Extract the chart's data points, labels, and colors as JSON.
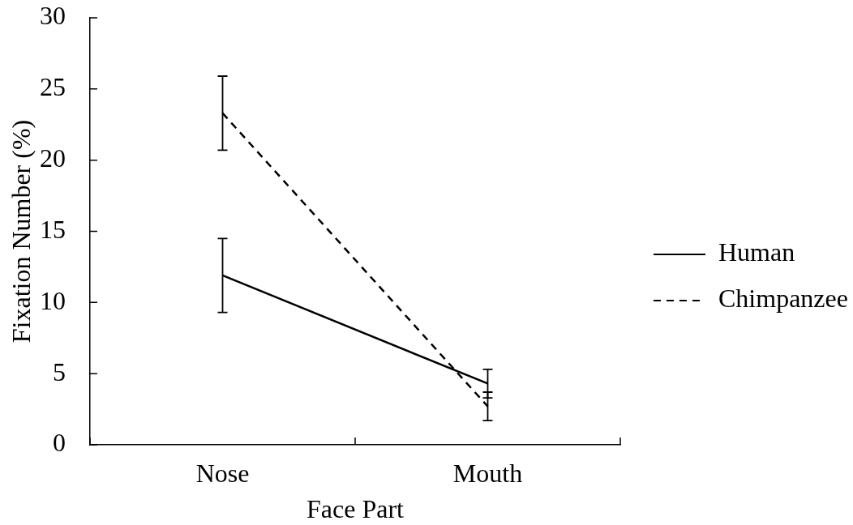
{
  "chart_data": {
    "type": "line",
    "xlabel": "Face Part",
    "ylabel": "Fixation Number (%)",
    "categories": [
      "Nose",
      "Mouth"
    ],
    "series": [
      {
        "name": "Human",
        "color": "#000000",
        "values": [
          11.9,
          4.3
        ],
        "errors": [
          2.6,
          1.0
        ],
        "line_style": "solid"
      },
      {
        "name": "Chimpanzee",
        "color": "#000000",
        "values": [
          23.3,
          2.7
        ],
        "errors": [
          2.6,
          1.0
        ],
        "line_style": "dashed"
      }
    ],
    "ylim": [
      0,
      30
    ],
    "yticks": [
      0,
      5,
      10,
      15,
      20,
      25,
      30
    ],
    "grid": false,
    "legend": "right",
    "marker": "none"
  }
}
